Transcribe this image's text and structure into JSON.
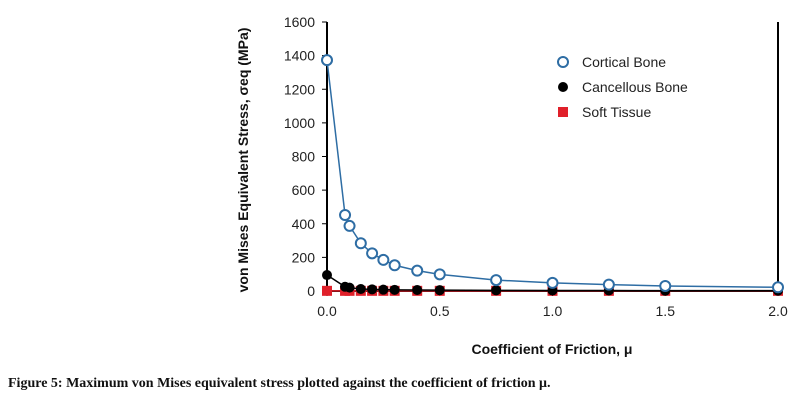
{
  "chart_data": {
    "type": "scatter",
    "title": "",
    "xlabel": "Coefficient of Friction, μ",
    "ylabel": "von Mises Equivalent Stress, σeq (MPa)",
    "xlim": [
      0,
      2.0
    ],
    "ylim": [
      0,
      1600
    ],
    "xticks": [
      "0.0",
      "0.5",
      "1.0",
      "1.5",
      "2.0"
    ],
    "yticks": [
      "0",
      "200",
      "400",
      "600",
      "800",
      "1000",
      "1200",
      "1400",
      "1600"
    ],
    "grid": false,
    "legend_position": "top-right",
    "x": [
      0,
      0.08,
      0.1,
      0.15,
      0.2,
      0.25,
      0.3,
      0.4,
      0.5,
      0.75,
      1.0,
      1.25,
      1.5,
      2.0
    ],
    "series": [
      {
        "name": "Cortical Bone",
        "color": "#2e6da4",
        "marker": "open-circle",
        "values": [
          1373,
          452,
          387,
          284,
          224,
          185,
          153,
          121,
          99,
          65,
          48,
          38,
          30,
          22
        ]
      },
      {
        "name": "Cancellous Bone",
        "color": "#000000",
        "marker": "filled-circle",
        "values": [
          95,
          25,
          20,
          12,
          10,
          8,
          7,
          6,
          5,
          4,
          3,
          3,
          2,
          2
        ]
      },
      {
        "name": "Soft Tissue",
        "color": "#e0202a",
        "marker": "filled-square",
        "values": [
          1,
          1,
          1,
          1,
          1,
          1,
          1,
          1,
          1,
          1,
          1,
          1,
          1,
          1
        ]
      }
    ]
  },
  "caption": "Figure 5: Maximum von Mises equivalent stress plotted against the coefficient of friction μ."
}
